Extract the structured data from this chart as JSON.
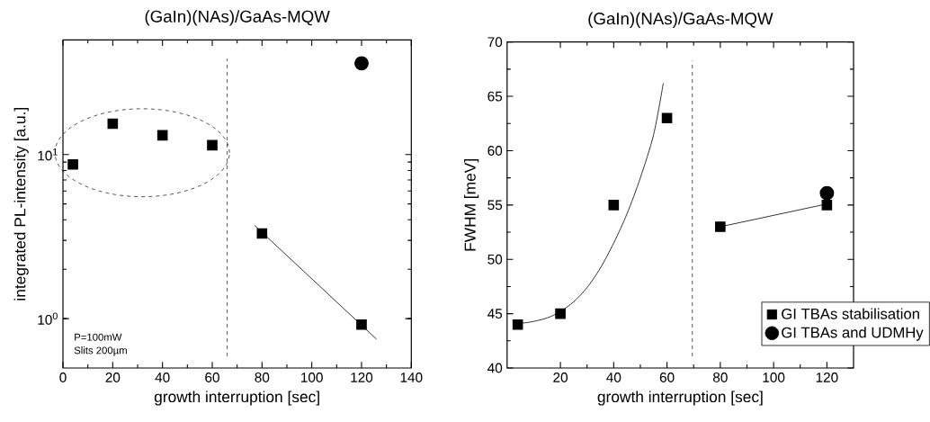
{
  "chart_data": [
    {
      "type": "scatter",
      "title": "(GaIn)(NAs)/GaAs-MQW",
      "xlabel": "growth interruption [sec]",
      "ylabel": "integrated PL-intensity [a.u.]",
      "log": "y",
      "xlim": [
        0,
        140
      ],
      "xticks": [
        0,
        20,
        40,
        60,
        80,
        100,
        120,
        140
      ],
      "ylim": [
        0.5,
        50
      ],
      "yticks": [
        {
          "value": 1,
          "label": "10$^{0}$"
        },
        {
          "value": 10,
          "label": "10$^{1}$"
        }
      ],
      "grid": false,
      "legend": false,
      "ref_lines": [
        {
          "axis": "x",
          "value": 66,
          "color": "#000000",
          "line_style": "dashed"
        }
      ],
      "annotations": [
        "P=100mW",
        "Slits 200µm"
      ],
      "series": [
        {
          "marker": "square",
          "color": "#000000",
          "x": [
            4,
            20,
            40,
            60,
            80,
            120
          ],
          "values": [
            8.7,
            15.4,
            13.1,
            11.4,
            3.3,
            0.92
          ]
        },
        {
          "marker": "circle",
          "color": "#000000",
          "x": [
            120
          ],
          "values": [
            36
          ]
        },
        {
          "type": "line",
          "marker": "none",
          "color": "#000000",
          "x": [
            77,
            126
          ],
          "values": [
            3.7,
            0.75
          ]
        }
      ]
    },
    {
      "type": "scatter",
      "title": "(GaIn)(NAs)/GaAs-MQW",
      "xlabel": "growth interruption [sec]",
      "ylabel": "FWHM [meV]",
      "xlim": [
        0,
        130
      ],
      "xticks": [
        20,
        40,
        60,
        80,
        100,
        120
      ],
      "ylim": [
        40,
        70
      ],
      "yticks": [
        40,
        45,
        50,
        55,
        60,
        65,
        70
      ],
      "grid": false,
      "legend": "bottom right",
      "ref_lines": [
        {
          "axis": "x",
          "value": 69.5,
          "color": "#000000",
          "line_style": "dashed"
        }
      ],
      "series": [
        {
          "name": "GI  TBAs stabilisation",
          "marker": "square",
          "color": "#000000",
          "x": [
            4,
            20,
            40,
            60,
            80,
            120
          ],
          "values": [
            44,
            45,
            55,
            63,
            53,
            55
          ]
        },
        {
          "name": "GI  TBAs and UDMHy",
          "marker": "circle",
          "color": "#000000",
          "x": [
            120
          ],
          "values": [
            56.1
          ]
        },
        {
          "type": "line",
          "marker": "none",
          "color": "#000000",
          "x": [
            4,
            8,
            12,
            16,
            20,
            25,
            30,
            35,
            40,
            45,
            50,
            55,
            58.6
          ],
          "values": [
            44.1,
            44.2,
            44.4,
            44.7,
            45.2,
            46.1,
            47.4,
            49.2,
            51.5,
            54.2,
            57.5,
            61.5,
            66.2
          ]
        },
        {
          "type": "line",
          "marker": "none",
          "color": "#000000",
          "x": [
            80,
            120
          ],
          "values": [
            53,
            55.1
          ]
        }
      ]
    }
  ]
}
